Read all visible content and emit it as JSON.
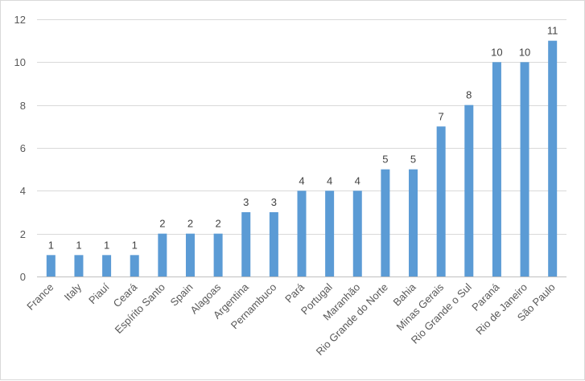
{
  "chart_data": {
    "type": "bar",
    "title": "",
    "xlabel": "",
    "ylabel": "",
    "categories": [
      "France",
      "Italy",
      "Piauí",
      "Ceará",
      "Espírito Santo",
      "Spain",
      "Alagoas",
      "Argentina",
      "Pernambuco",
      "Pará",
      "Portugal",
      "Maranhão",
      "Rio Grande do Norte",
      "Bahia",
      "Minas Gerais",
      "Rio Grande o Sul",
      "Paraná",
      "Rio de Janeiro",
      "São Paulo"
    ],
    "values": [
      1,
      1,
      1,
      1,
      2,
      2,
      2,
      3,
      3,
      4,
      4,
      4,
      5,
      5,
      7,
      8,
      10,
      10,
      11
    ],
    "ylim": [
      0,
      12
    ],
    "yticks": [
      0,
      2,
      4,
      6,
      8,
      10,
      12
    ],
    "grid": true,
    "legend": "none",
    "bar_color": "#5b9bd5"
  }
}
